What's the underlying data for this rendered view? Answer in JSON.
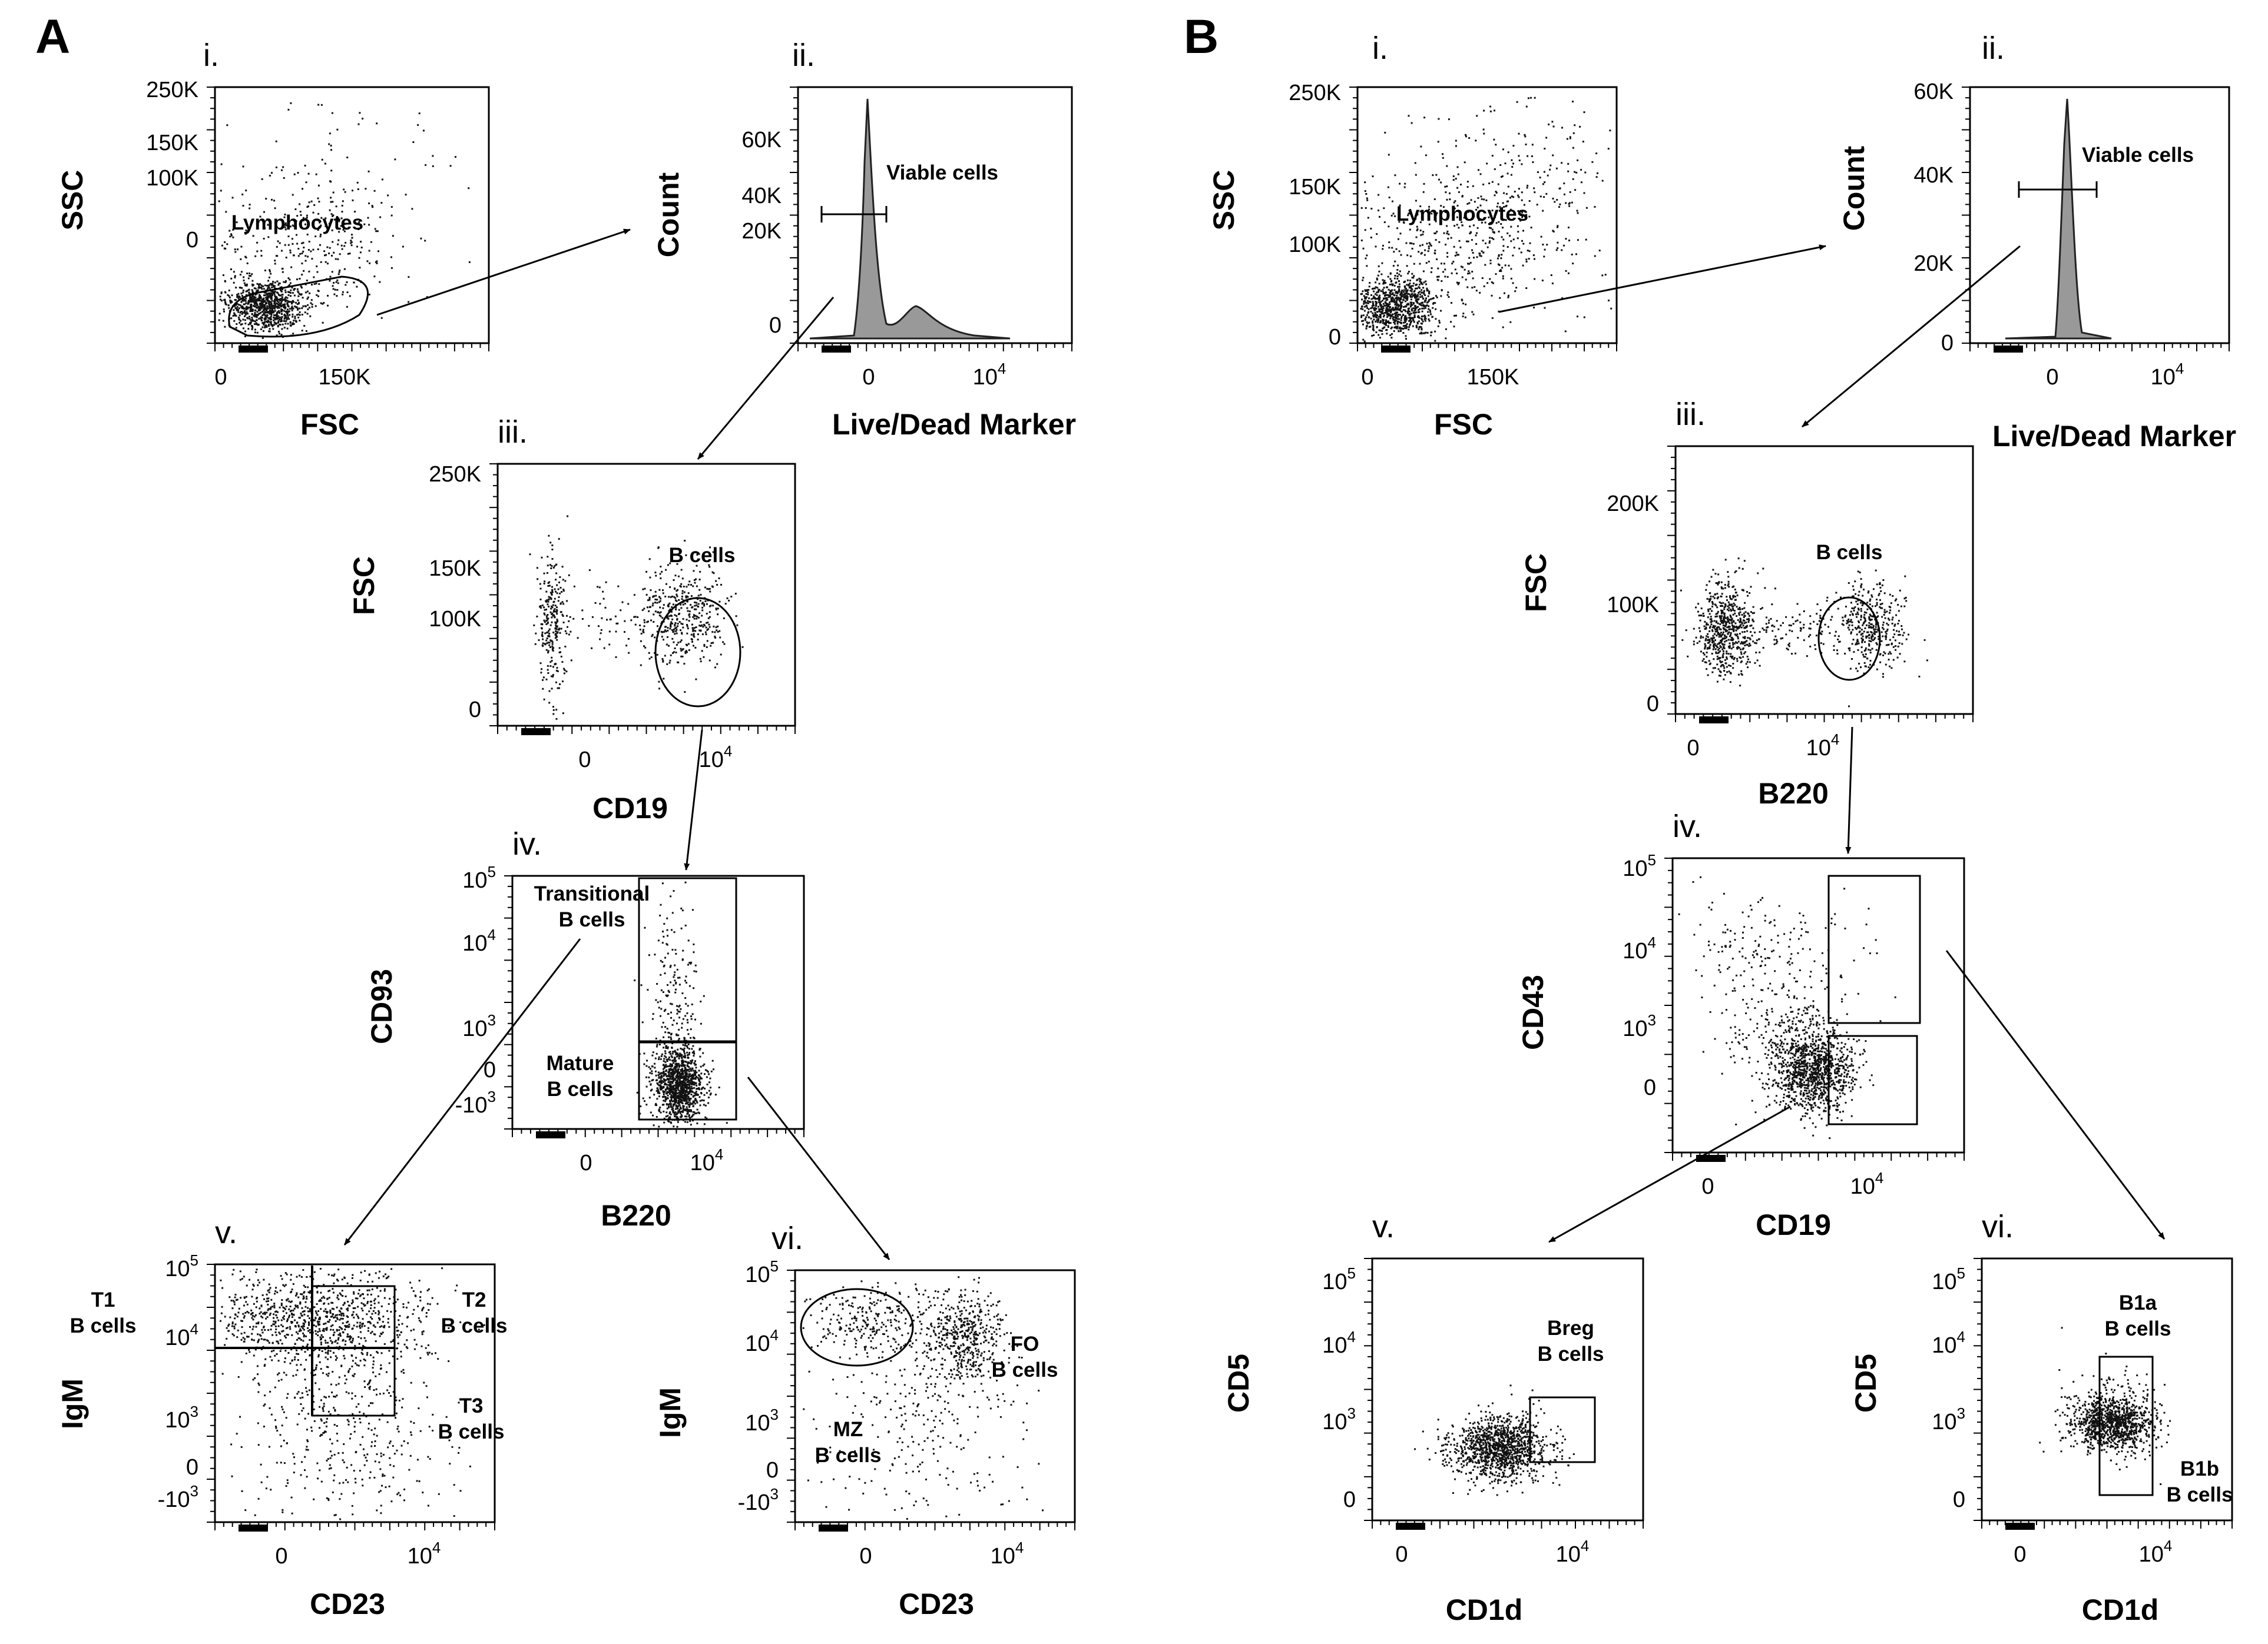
{
  "figure": {
    "panels": [
      {
        "id": "A",
        "label": "A",
        "plots": [
          {
            "id": "i",
            "label": "i.",
            "kind": "scatter",
            "x_label": "FSC",
            "y_label": "SSC",
            "x_ticks": [
              {
                "text": "0"
              },
              {
                "text": "150K"
              }
            ],
            "y_ticks": [
              {
                "text": "250K"
              },
              {
                "text": "150K"
              },
              {
                "text": "100K"
              },
              {
                "text": "0"
              }
            ],
            "gates": [
              {
                "label_lines": [
                  "Lymphocytes"
                ]
              }
            ]
          },
          {
            "id": "ii",
            "label": "ii.",
            "kind": "histogram",
            "x_label": "Live/Dead Marker",
            "y_label": "Count",
            "x_ticks": [
              {
                "text": "0"
              },
              {
                "text": "10",
                "sup": "4"
              }
            ],
            "y_ticks": [
              {
                "text": "60K"
              },
              {
                "text": "40K"
              },
              {
                "text": "20K"
              },
              {
                "text": "0"
              }
            ],
            "gates": [
              {
                "label_lines": [
                  "Viable cells"
                ]
              }
            ]
          },
          {
            "id": "iii",
            "label": "iii.",
            "kind": "scatter",
            "x_label": "CD19",
            "y_label": "FSC",
            "x_ticks": [
              {
                "text": "0"
              },
              {
                "text": "10",
                "sup": "4"
              }
            ],
            "y_ticks": [
              {
                "text": "250K"
              },
              {
                "text": "150K"
              },
              {
                "text": "100K"
              },
              {
                "text": "0"
              }
            ],
            "gates": [
              {
                "label_lines": [
                  "B cells"
                ]
              }
            ]
          },
          {
            "id": "iv",
            "label": "iv.",
            "kind": "scatter",
            "x_label": "B220",
            "y_label": "CD93",
            "x_ticks": [
              {
                "text": "0"
              },
              {
                "text": "10",
                "sup": "4"
              }
            ],
            "y_ticks": [
              {
                "text": "10",
                "sup": "5"
              },
              {
                "text": "10",
                "sup": "4"
              },
              {
                "text": "10",
                "sup": "3"
              },
              {
                "text": "0"
              },
              {
                "text": "-10",
                "sup": "3"
              }
            ],
            "gates": [
              {
                "label_lines": [
                  "Transitional",
                  "B cells"
                ]
              },
              {
                "label_lines": [
                  "Mature",
                  "B cells"
                ]
              }
            ]
          },
          {
            "id": "v",
            "label": "v.",
            "kind": "scatter",
            "x_label": "CD23",
            "y_label": "IgM",
            "x_ticks": [
              {
                "text": "0"
              },
              {
                "text": "10",
                "sup": "4"
              }
            ],
            "y_ticks": [
              {
                "text": "10",
                "sup": "5"
              },
              {
                "text": "10",
                "sup": "4"
              },
              {
                "text": "10",
                "sup": "3"
              },
              {
                "text": "0"
              },
              {
                "text": "-10",
                "sup": "3"
              }
            ],
            "gates": [
              {
                "label_lines": [
                  "T1",
                  "B cells"
                ]
              },
              {
                "label_lines": [
                  "T2",
                  "B cells"
                ]
              },
              {
                "label_lines": [
                  "T3",
                  "B cells"
                ]
              }
            ]
          },
          {
            "id": "vi",
            "label": "vi.",
            "kind": "scatter",
            "x_label": "CD23",
            "y_label": "IgM",
            "x_ticks": [
              {
                "text": "0"
              },
              {
                "text": "10",
                "sup": "4"
              }
            ],
            "y_ticks": [
              {
                "text": "10",
                "sup": "5"
              },
              {
                "text": "10",
                "sup": "4"
              },
              {
                "text": "10",
                "sup": "3"
              },
              {
                "text": "0"
              },
              {
                "text": "-10",
                "sup": "3"
              }
            ],
            "gates": [
              {
                "label_lines": [
                  "MZ",
                  "B cells"
                ]
              },
              {
                "label_lines": [
                  "FO",
                  "B cells"
                ]
              }
            ]
          }
        ]
      },
      {
        "id": "B",
        "label": "B",
        "plots": [
          {
            "id": "i",
            "label": "i.",
            "kind": "scatter",
            "x_label": "FSC",
            "y_label": "SSC",
            "x_ticks": [
              {
                "text": "0"
              },
              {
                "text": "150K"
              }
            ],
            "y_ticks": [
              {
                "text": "250K"
              },
              {
                "text": "150K"
              },
              {
                "text": "100K"
              },
              {
                "text": "0"
              }
            ],
            "gates": [
              {
                "label_lines": [
                  "Lymphocytes"
                ]
              }
            ]
          },
          {
            "id": "ii",
            "label": "ii.",
            "kind": "histogram",
            "x_label": "Live/Dead Marker",
            "y_label": "Count",
            "x_ticks": [
              {
                "text": "0"
              },
              {
                "text": "10",
                "sup": "4"
              }
            ],
            "y_ticks": [
              {
                "text": "60K"
              },
              {
                "text": "40K"
              },
              {
                "text": "20K"
              },
              {
                "text": "0"
              }
            ],
            "gates": [
              {
                "label_lines": [
                  "Viable cells"
                ]
              }
            ]
          },
          {
            "id": "iii",
            "label": "iii.",
            "kind": "scatter",
            "x_label": "B220",
            "y_label": "FSC",
            "x_ticks": [
              {
                "text": "0"
              },
              {
                "text": "10",
                "sup": "4"
              }
            ],
            "y_ticks": [
              {
                "text": "200K"
              },
              {
                "text": "100K"
              },
              {
                "text": "0"
              }
            ],
            "gates": [
              {
                "label_lines": [
                  "B cells"
                ]
              }
            ]
          },
          {
            "id": "iv",
            "label": "iv.",
            "kind": "scatter",
            "x_label": "CD19",
            "y_label": "CD43",
            "x_ticks": [
              {
                "text": "0"
              },
              {
                "text": "10",
                "sup": "4"
              }
            ],
            "y_ticks": [
              {
                "text": "10",
                "sup": "5"
              },
              {
                "text": "10",
                "sup": "4"
              },
              {
                "text": "10",
                "sup": "3"
              },
              {
                "text": "0"
              }
            ],
            "gates": []
          },
          {
            "id": "v",
            "label": "v.",
            "kind": "scatter",
            "x_label": "CD1d",
            "y_label": "CD5",
            "x_ticks": [
              {
                "text": "0"
              },
              {
                "text": "10",
                "sup": "4"
              }
            ],
            "y_ticks": [
              {
                "text": "10",
                "sup": "5"
              },
              {
                "text": "10",
                "sup": "4"
              },
              {
                "text": "10",
                "sup": "3"
              },
              {
                "text": "0"
              }
            ],
            "gates": [
              {
                "label_lines": [
                  "Breg",
                  "B cells"
                ]
              }
            ]
          },
          {
            "id": "vi",
            "label": "vi.",
            "kind": "scatter",
            "x_label": "CD1d",
            "y_label": "CD5",
            "x_ticks": [
              {
                "text": "0"
              },
              {
                "text": "10",
                "sup": "4"
              }
            ],
            "y_ticks": [
              {
                "text": "10",
                "sup": "5"
              },
              {
                "text": "10",
                "sup": "4"
              },
              {
                "text": "10",
                "sup": "3"
              },
              {
                "text": "0"
              }
            ],
            "gates": [
              {
                "label_lines": [
                  "B1a",
                  "B cells"
                ]
              },
              {
                "label_lines": [
                  "B1b",
                  "B cells"
                ]
              }
            ]
          }
        ]
      }
    ],
    "arrows": [
      {
        "panel": "A",
        "from": "i",
        "to": "ii"
      },
      {
        "panel": "A",
        "from": "ii",
        "to": "iii"
      },
      {
        "panel": "A",
        "from": "iii",
        "to": "iv"
      },
      {
        "panel": "A",
        "from": "iv",
        "to": "v"
      },
      {
        "panel": "A",
        "from": "iv",
        "to": "vi"
      },
      {
        "panel": "B",
        "from": "i",
        "to": "ii"
      },
      {
        "panel": "B",
        "from": "ii",
        "to": "iii"
      },
      {
        "panel": "B",
        "from": "iii",
        "to": "iv"
      },
      {
        "panel": "B",
        "from": "iv",
        "to": "v"
      },
      {
        "panel": "B",
        "from": "iv",
        "to": "vi"
      }
    ]
  }
}
